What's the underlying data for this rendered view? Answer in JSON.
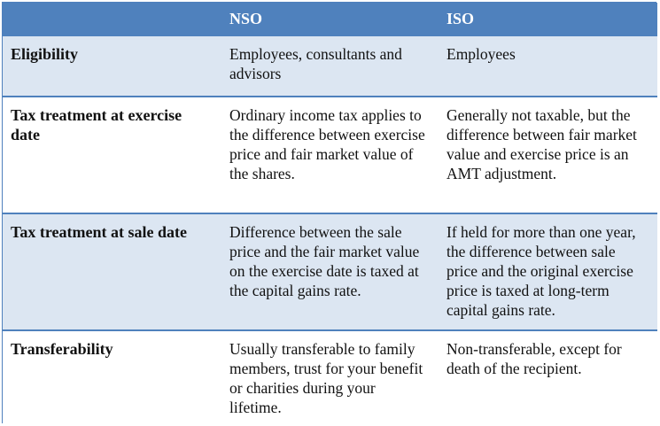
{
  "headers": [
    "",
    "NSO",
    "ISO"
  ],
  "rows": [
    {
      "label": "Eligibility",
      "nso": "Employees, consultants and advisors",
      "iso": "Employees"
    },
    {
      "label": "Tax treatment at exercise date",
      "nso": "Ordinary income tax applies to the difference between exercise price and fair market value of the shares.",
      "iso": "Generally not taxable, but the difference between fair market value and exercise price is an AMT adjustment."
    },
    {
      "label": "Tax treatment at sale date",
      "nso": "Difference between the sale price and the fair market value on the exercise date is taxed at the capital gains rate.",
      "iso": "If held for more than one year, the difference between sale price and the original exercise price is taxed at long-term capital gains rate."
    },
    {
      "label": "Transferability",
      "nso": "Usually transferable to family members, trust for your benefit or charities during your lifetime.",
      "iso": "Non-transferable, except for death of the recipient."
    }
  ],
  "colors": {
    "header_bg": "#4f81bd",
    "shaded_row_bg": "#dce6f2",
    "plain_row_bg": "#ffffff",
    "header_text": "#ffffff"
  }
}
